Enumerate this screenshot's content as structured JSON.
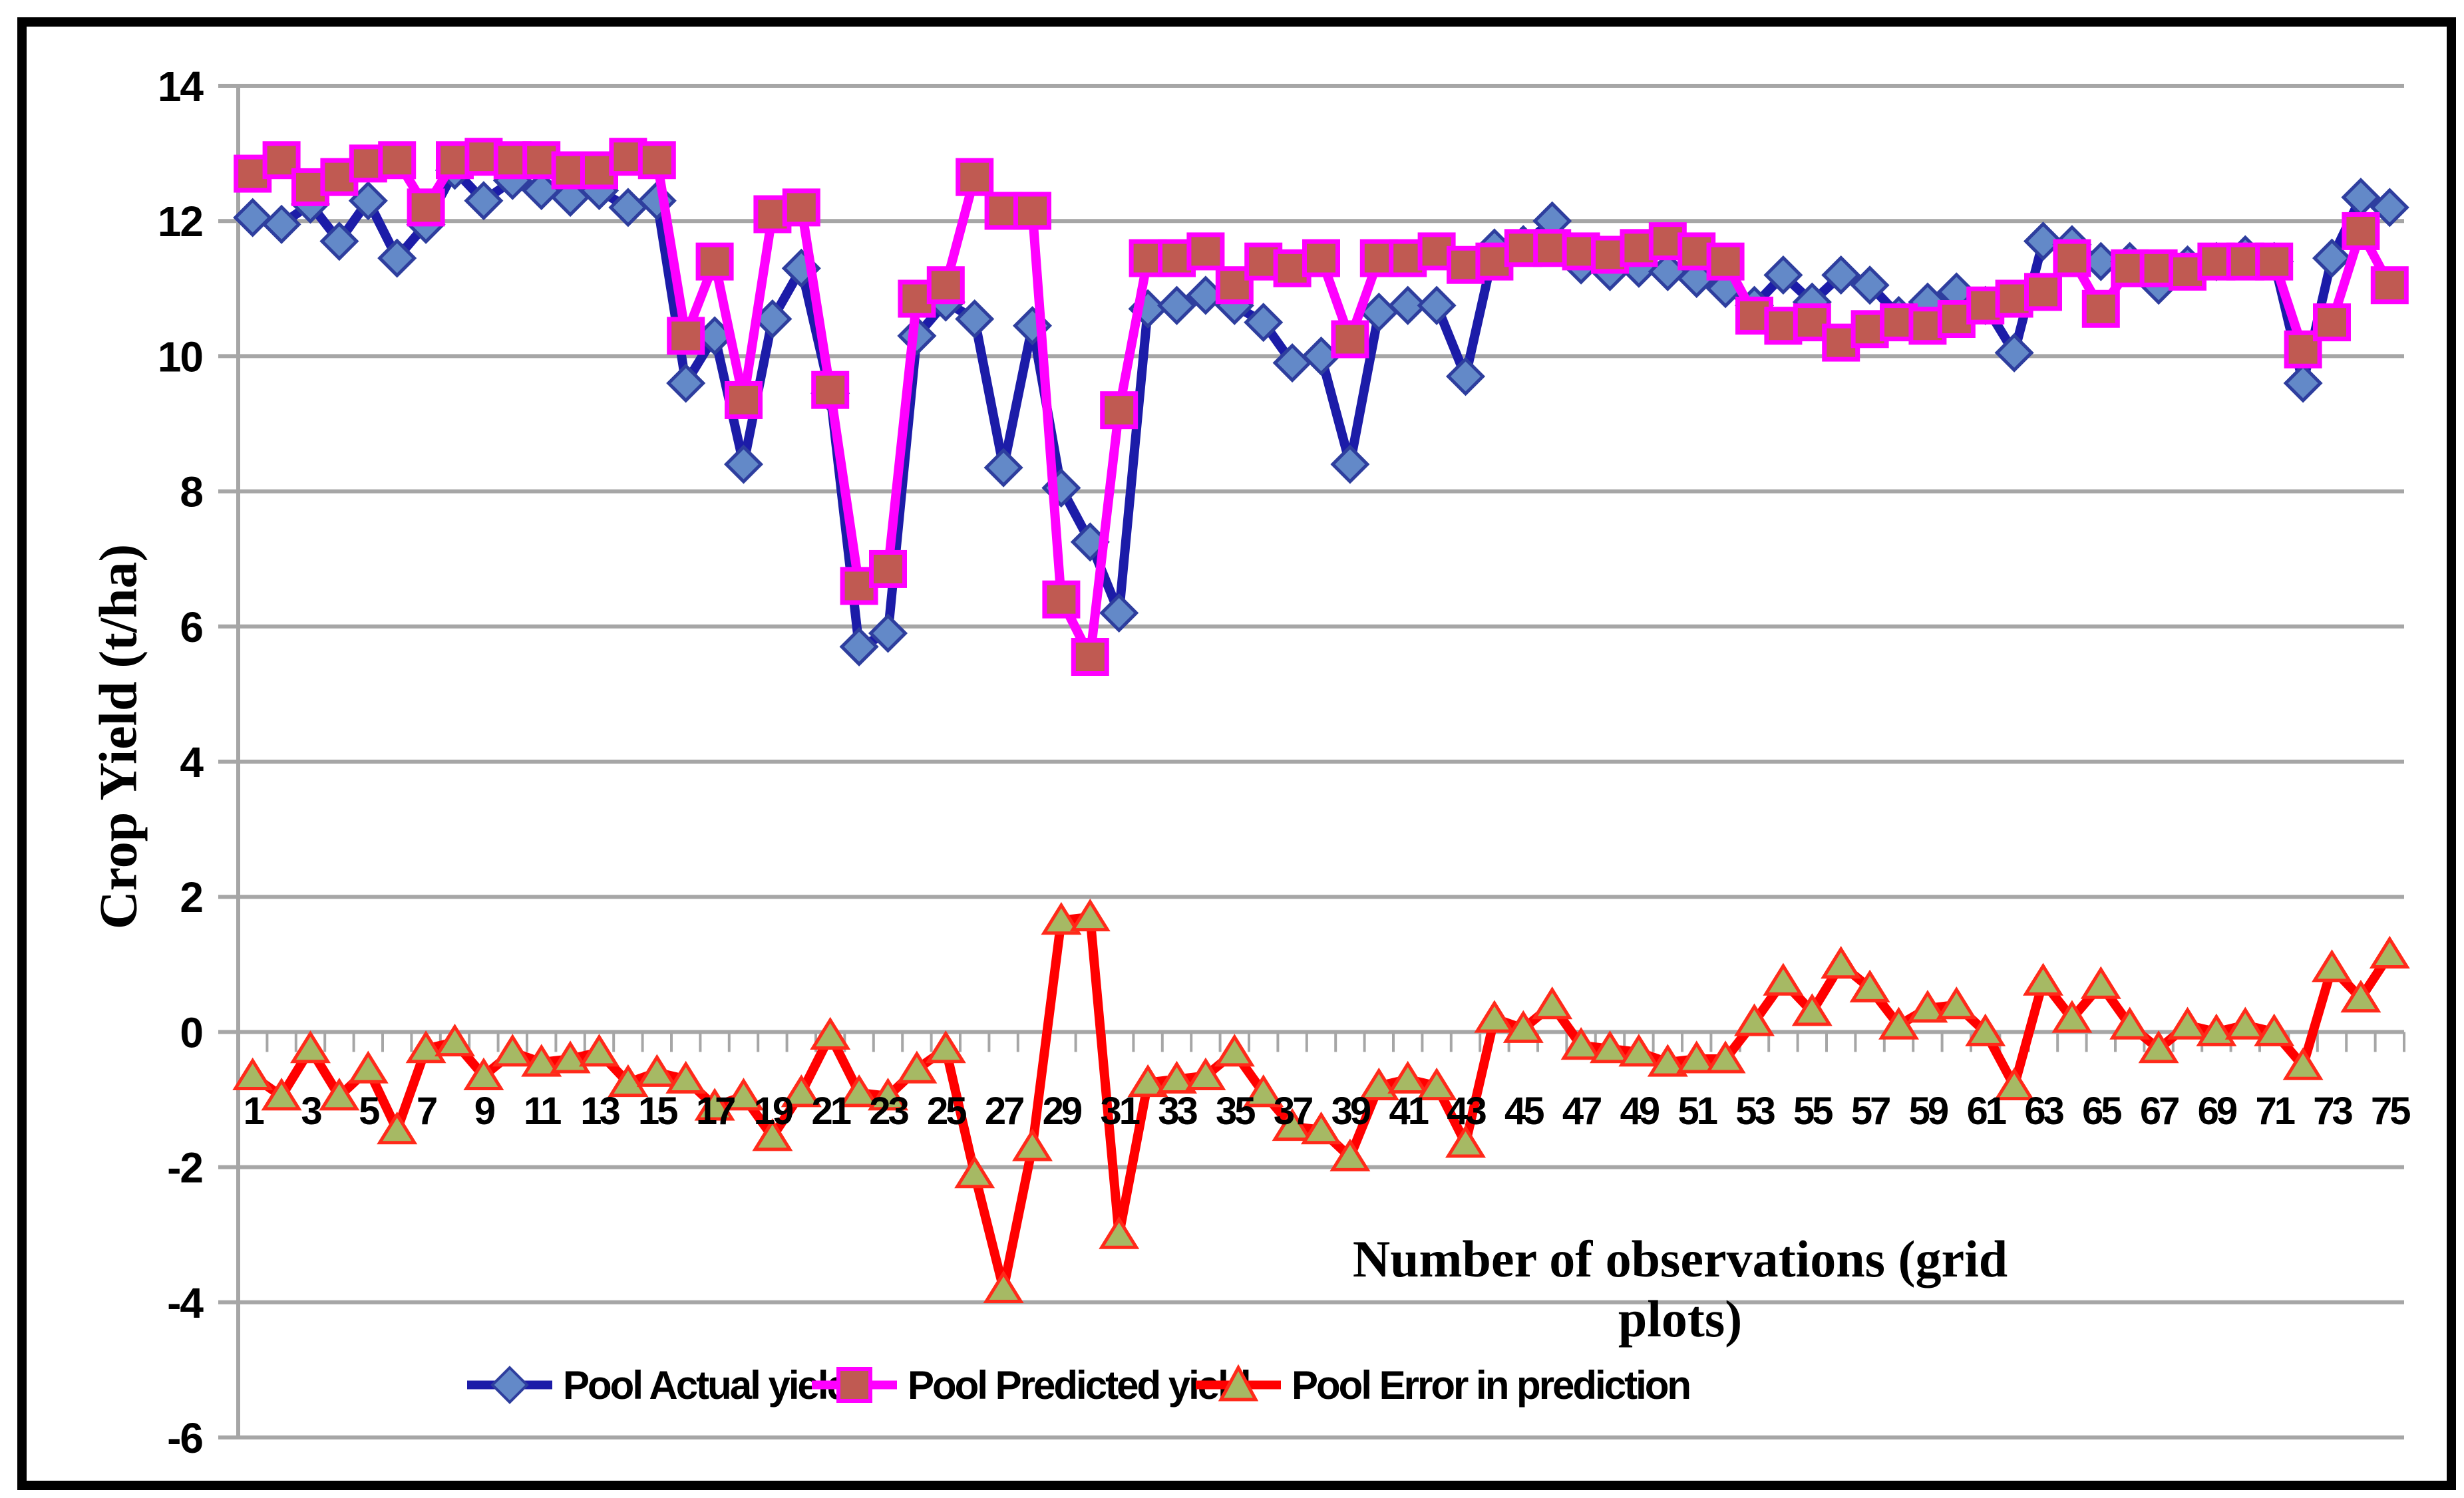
{
  "chart_data": {
    "type": "line",
    "title": "",
    "xlabel": "Number of observations (grid plots)",
    "ylabel": "Crop Yield (t/ha)",
    "ylim": [
      -6,
      14
    ],
    "yticks": [
      14,
      12,
      10,
      8,
      6,
      4,
      2,
      0,
      -2,
      -4,
      -6
    ],
    "x": [
      1,
      2,
      3,
      4,
      5,
      6,
      7,
      8,
      9,
      10,
      11,
      12,
      13,
      14,
      15,
      16,
      17,
      18,
      19,
      20,
      21,
      22,
      23,
      24,
      25,
      26,
      27,
      28,
      29,
      30,
      31,
      32,
      33,
      34,
      35,
      36,
      37,
      38,
      39,
      40,
      41,
      42,
      43,
      44,
      45,
      46,
      47,
      48,
      49,
      50,
      51,
      52,
      53,
      54,
      55,
      56,
      57,
      58,
      59,
      60,
      61,
      62,
      63,
      64,
      65,
      66,
      67,
      68,
      69,
      70,
      71,
      72,
      73,
      74,
      75
    ],
    "x_tick_labels": [
      "1",
      "3",
      "5",
      "7",
      "9",
      "11",
      "13",
      "15",
      "17",
      "19",
      "21",
      "23",
      "25",
      "27",
      "29",
      "31",
      "33",
      "35",
      "37",
      "39",
      "41",
      "43",
      "45",
      "47",
      "49",
      "51",
      "53",
      "55",
      "57",
      "59",
      "61",
      "63",
      "65",
      "67",
      "69",
      "71",
      "73",
      "75"
    ],
    "grid": "horizontal",
    "legend_position": "bottom-inside",
    "series": [
      {
        "name": "Pool Actual yield",
        "marker": "diamond",
        "line_color": "#1C1CA8",
        "marker_fill": "#6389C8",
        "marker_stroke": "#2E3E9E",
        "values": [
          12.05,
          11.95,
          12.25,
          11.7,
          12.3,
          11.45,
          11.95,
          12.75,
          12.3,
          12.6,
          12.45,
          12.35,
          12.45,
          12.2,
          12.3,
          9.6,
          10.3,
          8.4,
          10.55,
          11.3,
          9.45,
          5.7,
          5.9,
          10.3,
          10.8,
          10.55,
          8.35,
          10.45,
          8.05,
          7.25,
          6.2,
          10.7,
          10.75,
          10.9,
          10.75,
          10.5,
          9.9,
          10.0,
          8.4,
          10.65,
          10.75,
          10.75,
          9.7,
          11.6,
          11.65,
          12.0,
          11.35,
          11.25,
          11.3,
          11.25,
          11.15,
          11.0,
          10.75,
          11.2,
          10.8,
          11.2,
          11.05,
          10.6,
          10.8,
          10.95,
          10.75,
          10.05,
          11.7,
          11.65,
          11.4,
          11.4,
          11.05,
          11.35,
          11.4,
          11.5,
          11.4,
          9.6,
          11.45,
          12.35,
          12.2
        ]
      },
      {
        "name": "Pool Predicted yield",
        "marker": "square",
        "line_color": "#FF00FF",
        "marker_fill": "#C05A52",
        "marker_stroke": "#FF00FF",
        "values": [
          12.7,
          12.9,
          12.5,
          12.65,
          12.85,
          12.9,
          12.2,
          12.9,
          12.95,
          12.9,
          12.9,
          12.75,
          12.75,
          12.95,
          12.9,
          10.3,
          11.4,
          9.35,
          12.1,
          12.2,
          9.5,
          6.6,
          6.85,
          10.85,
          11.05,
          12.65,
          12.15,
          12.15,
          6.4,
          5.55,
          9.2,
          11.45,
          11.45,
          11.55,
          11.05,
          11.4,
          11.3,
          11.45,
          10.25,
          11.45,
          11.45,
          11.55,
          11.35,
          11.4,
          11.6,
          11.6,
          11.55,
          11.5,
          11.6,
          11.7,
          11.55,
          11.4,
          10.6,
          10.45,
          10.5,
          10.2,
          10.4,
          10.5,
          10.45,
          10.55,
          10.75,
          10.85,
          10.95,
          11.45,
          10.7,
          11.3,
          11.3,
          11.25,
          11.4,
          11.4,
          11.4,
          10.1,
          10.5,
          11.85,
          11.05
        ]
      },
      {
        "name": "Pool Error in prediction",
        "marker": "triangle",
        "line_color": "#FF0000",
        "marker_fill": "#A6B964",
        "marker_stroke": "#FF2A1A",
        "values": [
          -0.65,
          -0.95,
          -0.25,
          -0.95,
          -0.55,
          -1.45,
          -0.25,
          -0.15,
          -0.65,
          -0.3,
          -0.45,
          -0.4,
          -0.3,
          -0.75,
          -0.6,
          -0.7,
          -1.1,
          -0.95,
          -1.55,
          -0.9,
          -0.05,
          -0.9,
          -0.95,
          -0.55,
          -0.25,
          -2.1,
          -3.8,
          -1.7,
          1.65,
          1.7,
          -3.0,
          -0.75,
          -0.7,
          -0.65,
          -0.3,
          -0.9,
          -1.4,
          -1.45,
          -1.85,
          -0.8,
          -0.7,
          -0.8,
          -1.65,
          0.2,
          0.05,
          0.4,
          -0.2,
          -0.25,
          -0.3,
          -0.45,
          -0.4,
          -0.4,
          0.15,
          0.75,
          0.3,
          1.0,
          0.65,
          0.1,
          0.35,
          0.4,
          0.0,
          -0.8,
          0.75,
          0.2,
          0.7,
          0.1,
          -0.25,
          0.1,
          0.0,
          0.1,
          0.0,
          -0.5,
          0.95,
          0.5,
          1.15
        ]
      }
    ]
  },
  "colors": {
    "background": "#FFFFFF",
    "border": "#000000",
    "gridline": "#A6A6A6",
    "axis_line": "#A6A6A6",
    "tick": "#A6A6A6",
    "text": "#000000"
  }
}
